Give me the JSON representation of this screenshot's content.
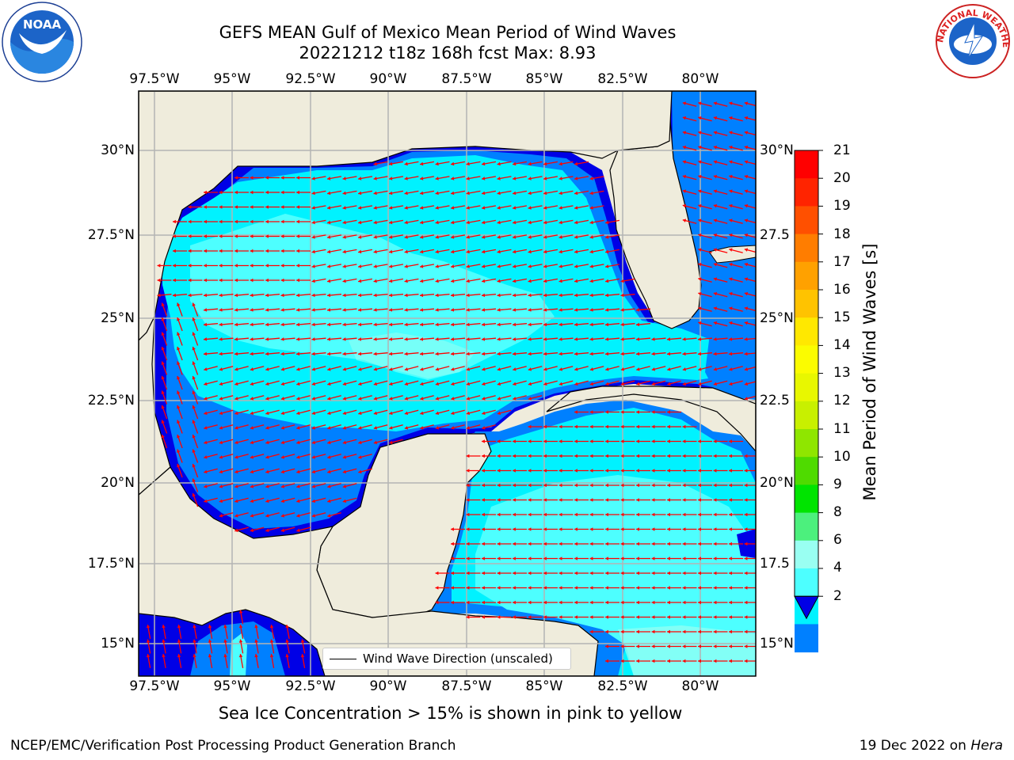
{
  "title": {
    "line1": "GEFS MEAN Gulf of Mexico Mean Period of Wind Waves",
    "line2": "20221212 t18z 168h fcst   Max: 8.93"
  },
  "longitude_ticks": [
    "97.5°W",
    "95°W",
    "92.5°W",
    "90°W",
    "87.5°W",
    "85°W",
    "82.5°W",
    "80°W"
  ],
  "latitude_ticks": [
    "30°N",
    "27.5°N",
    "25°N",
    "22.5°N",
    "20°N",
    "17.5°N",
    "15°N"
  ],
  "latitude_ticks_right": [
    "30°N",
    "27.5",
    "25°N",
    "22.5",
    "20°N",
    "17.5",
    "15°N"
  ],
  "legend": {
    "label": "Wind Wave Direction (unscaled)"
  },
  "colorbar": {
    "title": "Mean Period of Wind Waves [s]",
    "levels": [
      "21",
      "20",
      "19",
      "18",
      "17",
      "16",
      "15",
      "14",
      "13",
      "12",
      "11",
      "10",
      "9",
      "8",
      "6",
      "4",
      "2"
    ],
    "colors": [
      "#ff0000",
      "#ff2400",
      "#ff5000",
      "#ff7d00",
      "#ffa100",
      "#ffc300",
      "#ffe800",
      "#fbfc00",
      "#e8f700",
      "#c8f000",
      "#8fe600",
      "#4fdb00",
      "#00e400",
      "#4cf07d",
      "#99fff2",
      "#4dffff",
      "#00f2ff",
      "#0080ff",
      "#0000e6"
    ]
  },
  "caption": "Sea Ice Concentration > 15% is shown in pink to yellow",
  "footer": {
    "left": "NCEP/EMC/Verification Post Processing Product Generation Branch",
    "right_prefix": "19 Dec 2022 on ",
    "right_host": "Hera"
  },
  "logos": {
    "noaa": "NOAA",
    "nws": "NATIONAL WEATHER SERVICE"
  },
  "colors": {
    "land": "#efecdc",
    "arrow": "#ff0000",
    "grid": "#b4b4b4"
  }
}
